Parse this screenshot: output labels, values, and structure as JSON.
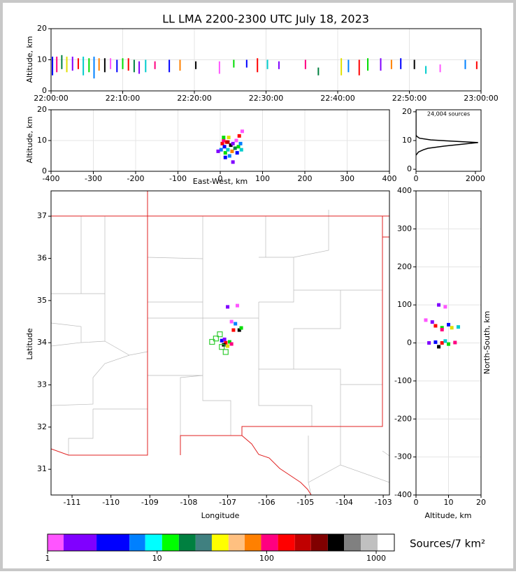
{
  "chart_data": [
    {
      "type": "range",
      "title": "LL LMA 2200-2300 UTC July 18, 2023",
      "ylabel": "Altitude, km",
      "xlim": [
        0,
        60
      ],
      "ylim": [
        0,
        20
      ],
      "grid": true,
      "xticks": [
        {
          "value": 0,
          "label": "22:00:00"
        },
        {
          "value": 10,
          "label": "22:10:00"
        },
        {
          "value": 20,
          "label": "22:20:00"
        },
        {
          "value": 30,
          "label": "22:30:00"
        },
        {
          "value": 40,
          "label": "22:40:00"
        },
        {
          "value": 50,
          "label": "22:50:00"
        },
        {
          "value": 60,
          "label": "23:00:00"
        }
      ],
      "yticks": [
        0,
        10,
        20
      ],
      "x": [
        0.2,
        0.8,
        1.5,
        2.2,
        3.0,
        3.8,
        4.5,
        5.3,
        6.0,
        6.7,
        7.5,
        8.3,
        9.2,
        10.0,
        10.8,
        11.6,
        12.3,
        13.2,
        14.5,
        16.5,
        18.0,
        20.2,
        23.5,
        25.5,
        27.3,
        28.8,
        30.2,
        31.8,
        35.5,
        37.3,
        40.5,
        41.5,
        43.0,
        44.2,
        46.0,
        47.5,
        48.8,
        50.7,
        52.3,
        54.3,
        57.8,
        59.4
      ],
      "low": [
        5,
        6,
        7,
        6,
        6.5,
        7,
        5,
        6,
        4,
        6.5,
        6,
        7,
        6,
        7,
        6.5,
        6,
        5.5,
        6,
        7,
        6,
        6.5,
        7,
        5.5,
        7.5,
        7.5,
        6,
        7,
        7,
        7,
        5,
        5,
        6,
        5,
        6.5,
        6.5,
        7,
        7,
        7,
        5.5,
        6,
        7,
        7
      ],
      "high": [
        11,
        11,
        11.5,
        11,
        11,
        10.5,
        11,
        10.5,
        11,
        10.5,
        10.5,
        10.5,
        10,
        10.5,
        10.5,
        10,
        9.5,
        10,
        9.5,
        10,
        10,
        9.5,
        9.5,
        10,
        10,
        10.5,
        10,
        9.5,
        10,
        7.5,
        10.5,
        10,
        10,
        10.5,
        10.5,
        10,
        10.5,
        10,
        8,
        8.5,
        10,
        9.5
      ],
      "colors": [
        "#0000ff",
        "#ff0080",
        "#008040",
        "#e0e000",
        "#8000ff",
        "#ff0000",
        "#00cccc",
        "#00dd00",
        "#0080ff",
        "#ff8000",
        "#000000",
        "#ff55ff",
        "#0000ff",
        "#00dd00",
        "#ff0000",
        "#008040",
        "#8000ff",
        "#00cccc",
        "#ff0080",
        "#0000ff",
        "#ff8000",
        "#000000",
        "#ff55ff",
        "#00dd00",
        "#0000ff",
        "#ff0000",
        "#00cccc",
        "#8000ff",
        "#ff0080",
        "#008040",
        "#e0e000",
        "#0080ff",
        "#ff0000",
        "#00dd00",
        "#8000ff",
        "#ff8000",
        "#0000ff",
        "#000000",
        "#00cccc",
        "#ff55ff",
        "#0080ff",
        "#ff0000"
      ]
    },
    {
      "type": "scatter",
      "xlabel": "East-West, km",
      "ylabel": "Altitude, km",
      "xlim": [
        -400,
        400
      ],
      "ylim": [
        0,
        20
      ],
      "grid": true,
      "xticks": [
        -400,
        -300,
        -200,
        -100,
        0,
        100,
        200,
        300,
        400
      ],
      "yticks": [
        0,
        10,
        20
      ],
      "x": [
        2,
        -5,
        5,
        8,
        10,
        12,
        15,
        18,
        20,
        22,
        25,
        28,
        30,
        35,
        38,
        40,
        43,
        45,
        48,
        50,
        52,
        12,
        30,
        8,
        18
      ],
      "y": [
        7,
        6.5,
        9,
        10,
        8,
        6,
        9.5,
        7,
        11,
        5,
        8.5,
        6.5,
        9,
        7.5,
        10,
        6,
        8,
        11.5,
        9,
        7,
        13,
        4.5,
        3,
        11,
        9.5
      ],
      "colors": [
        "#0080ff",
        "#8000ff",
        "#ff0000",
        "#ff0080",
        "#0000ff",
        "#00dd00",
        "#ff0000",
        "#00cccc",
        "#e0e000",
        "#0080ff",
        "#000000",
        "#ff8000",
        "#8000ff",
        "#008040",
        "#ff55ff",
        "#0000ff",
        "#00dd00",
        "#ff0000",
        "#0080ff",
        "#00cccc",
        "#ff55ff",
        "#0000ff",
        "#8000ff",
        "#00dd00",
        "#c00000"
      ]
    },
    {
      "type": "line",
      "annotation": "24,004 sources",
      "xlim": [
        0,
        2190
      ],
      "ylim": [
        -0.7,
        20.7
      ],
      "grid": false,
      "xticks": [
        0,
        2000
      ],
      "yticks": [
        0,
        10,
        20
      ],
      "x": [
        0,
        80,
        250,
        400,
        900,
        2090,
        500,
        120,
        20,
        0
      ],
      "y": [
        4.9,
        6,
        6.8,
        7.3,
        8,
        9.3,
        10.2,
        10.8,
        11.5,
        12
      ],
      "color": "#000000"
    },
    {
      "type": "map",
      "xlabel": "Longitude",
      "ylabel": "Latitude",
      "xlim": [
        -111.54,
        -102.84
      ],
      "ylim": [
        30.39,
        37.6
      ],
      "grid": false,
      "xticks": [
        -111,
        -110,
        -109,
        -108,
        -107,
        -106,
        -105,
        -104,
        -103
      ],
      "yticks": [
        31,
        32,
        33,
        34,
        35,
        36,
        37
      ],
      "x": [
        -107.05,
        -107.1,
        -106.95,
        -107.0,
        -107.15,
        -106.9,
        -107.08,
        -106.85,
        -106.8,
        -106.7,
        -106.65,
        -106.9,
        -107.0,
        -106.75
      ],
      "y": [
        34.0,
        33.95,
        34.02,
        33.92,
        34.05,
        33.97,
        34.08,
        34.3,
        34.45,
        34.3,
        34.35,
        34.5,
        34.85,
        34.88
      ],
      "colors": [
        "#ff0000",
        "#000000",
        "#00dd00",
        "#e0e000",
        "#0000ff",
        "#ff0080",
        "#8000ff",
        "#ff0000",
        "#0080ff",
        "#000000",
        "#00dd00",
        "#ff55ff",
        "#8000ff",
        "#ff55ff"
      ],
      "stations": {
        "x": [
          -107.4,
          -107.3,
          -107.2,
          -107.05,
          -107.15
        ],
        "y": [
          34.02,
          34.1,
          34.2,
          33.78,
          33.9
        ],
        "color": "#33cc33"
      }
    },
    {
      "type": "scatter",
      "xlabel": "Altitude, km",
      "ylabel": "North-South, km",
      "xlim": [
        0,
        20
      ],
      "ylim": [
        -400,
        400
      ],
      "grid": true,
      "xticks": [
        0,
        10,
        20
      ],
      "yticks": [
        -400,
        -300,
        -200,
        -100,
        0,
        100,
        200,
        300,
        400
      ],
      "x": [
        8,
        6,
        10,
        4,
        12,
        7,
        9,
        8,
        6,
        10,
        5,
        11,
        8,
        9,
        7,
        3,
        13
      ],
      "y": [
        0,
        2,
        -3,
        0,
        1,
        -10,
        5,
        40,
        45,
        48,
        55,
        40,
        35,
        95,
        100,
        60,
        42
      ],
      "colors": [
        "#ff0000",
        "#0000ff",
        "#00dd00",
        "#8000ff",
        "#ff0080",
        "#000000",
        "#00cccc",
        "#00dd00",
        "#ff0000",
        "#0000ff",
        "#8000ff",
        "#e0e000",
        "#ff0080",
        "#ff55ff",
        "#8000ff",
        "#ff55ff",
        "#00cccc"
      ]
    },
    {
      "type": "colorbar",
      "label": "Sources/7 km²",
      "log": true,
      "xlim": [
        1,
        1465
      ],
      "xticks": [
        1,
        10,
        100,
        1000
      ],
      "bounds": [
        1,
        1.4,
        2.8,
        5.6,
        7.8,
        11.1,
        15.8,
        22.5,
        31.6,
        44.9,
        63,
        89,
        127,
        181,
        254,
        362,
        510,
        724,
        1030,
        1465
      ],
      "colors": [
        "#ff55ff",
        "#8000ff",
        "#0000ff",
        "#0080ff",
        "#00ffff",
        "#00ff00",
        "#008040",
        "#408080",
        "#ffff00",
        "#ffc080",
        "#ff8000",
        "#ff0080",
        "#ff0000",
        "#c00000",
        "#800000",
        "#000000",
        "#808080",
        "#c0c0c0",
        "#ffffff"
      ]
    }
  ]
}
